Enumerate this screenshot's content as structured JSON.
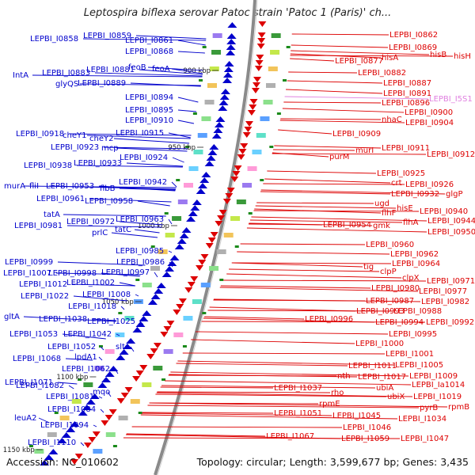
{
  "header": {
    "title": "Leptospira biflexa serovar Patoc strain 'Patoc 1 (Paris)' ch..."
  },
  "footer": {
    "accession": "Accession: NC_010602",
    "stats": "Topology: circular; Length: 3,599,677 bp; Genes: 3,435"
  },
  "colors": {
    "left_strand": "#0000cc",
    "right_strand": "#dd0000",
    "rna": "#e080e0",
    "backbone": "#8a8a8a",
    "tick": "#1a8a1a"
  },
  "scale_labels": [
    {
      "text": "900 kbp"
    },
    {
      "text": "950 kbp"
    },
    {
      "text": "1000 kbp"
    },
    {
      "text": "1050 kbp"
    },
    {
      "text": "1100 kbp"
    },
    {
      "text": "1150 kbp"
    }
  ],
  "left_labels": [
    {
      "text": "LEPBI_I0858"
    },
    {
      "text": "LEPBI_I0859"
    },
    {
      "text": "LEPBI_I0861"
    },
    {
      "text": "LEPBI_I0868"
    },
    {
      "text": "feoB"
    },
    {
      "text": "feoA"
    },
    {
      "text": "IntA"
    },
    {
      "text": "LEPBI_I0883"
    },
    {
      "text": "LEPBI_I0881"
    },
    {
      "text": "glyQS"
    },
    {
      "text": "LEPBI_I0889"
    },
    {
      "text": "LEPBI_I0894"
    },
    {
      "text": "LEPBI_I0895"
    },
    {
      "text": "LEPBI_I0910"
    },
    {
      "text": "LEPBI_I0915"
    },
    {
      "text": "LEPBI_I0918"
    },
    {
      "text": "cheY1"
    },
    {
      "text": "cheY2"
    },
    {
      "text": "LEPBI_I0923"
    },
    {
      "text": "mcp"
    },
    {
      "text": "LEPBI_I0924"
    },
    {
      "text": "LEPBI_I0938"
    },
    {
      "text": "LEPBI_I0933"
    },
    {
      "text": "LEPBI_I0942"
    },
    {
      "text": "murA"
    },
    {
      "text": "fliI"
    },
    {
      "text": "LEPBI_I0953"
    },
    {
      "text": "flbB"
    },
    {
      "text": "LEPBI_I0961"
    },
    {
      "text": "LEPBI_I0958"
    },
    {
      "text": "tatA"
    },
    {
      "text": "LEPBI_I0972"
    },
    {
      "text": "LEPBI_I0963"
    },
    {
      "text": "LEPBI_I0981"
    },
    {
      "text": "tatC"
    },
    {
      "text": "prlC"
    },
    {
      "text": "LEPBI_I0985"
    },
    {
      "text": "LEPBI_I0999"
    },
    {
      "text": "LEPBI_I0986"
    },
    {
      "text": "LEPBI_I1007"
    },
    {
      "text": "LEPBI_I0998"
    },
    {
      "text": "LEPBI_I0997"
    },
    {
      "text": "LEPBI_I1012"
    },
    {
      "text": "LEPBI_I1002"
    },
    {
      "text": "LEPBI_I1022"
    },
    {
      "text": "LEPBI_I1008"
    },
    {
      "text": "LEPBI_I1018"
    },
    {
      "text": "gltA"
    },
    {
      "text": "LEPBI_I1038"
    },
    {
      "text": "LEPBI_I1025"
    },
    {
      "text": "LEPBI_I1053"
    },
    {
      "text": "LEPBI_I1042"
    },
    {
      "text": "LEPBI_I1052"
    },
    {
      "text": "slt"
    },
    {
      "text": "LEPBI_I1068"
    },
    {
      "text": "lpdA1"
    },
    {
      "text": "LEPBI_I1062"
    },
    {
      "text": "LEPBI_I1071"
    },
    {
      "text": "LEPBI_I1082"
    },
    {
      "text": "mqo"
    },
    {
      "text": "LEPBI_I1081"
    },
    {
      "text": "LEPBI_I1084"
    },
    {
      "text": "leuA2"
    },
    {
      "text": "LEPBI_I1094"
    },
    {
      "text": "LEPBI_I1110"
    }
  ],
  "right_labels": [
    {
      "text": "LEPBI_I0862"
    },
    {
      "text": "LEPBI_I0869"
    },
    {
      "text": "hisB"
    },
    {
      "text": "hisH"
    },
    {
      "text": "LEPBI_I0877"
    },
    {
      "text": "hisA"
    },
    {
      "text": "LEPBI_I0882"
    },
    {
      "text": "LEPBI_I0887"
    },
    {
      "text": "LEPBI_I0891"
    },
    {
      "text": "LEPBI_I0896"
    },
    {
      "text": "LEPBI_I5S1",
      "rna": true
    },
    {
      "text": "LEPBI_I0900"
    },
    {
      "text": "nhaC"
    },
    {
      "text": "LEPBI_I0904"
    },
    {
      "text": "LEPBI_I0909"
    },
    {
      "text": "murI"
    },
    {
      "text": "LEPBI_I0911"
    },
    {
      "text": "purM"
    },
    {
      "text": "LEPBI_I0912"
    },
    {
      "text": "LEPBI_I0925"
    },
    {
      "text": "crt"
    },
    {
      "text": "LEPBI_I0926"
    },
    {
      "text": "LEPBI_I0932"
    },
    {
      "text": "glgP"
    },
    {
      "text": "ugd"
    },
    {
      "text": "hisE"
    },
    {
      "text": "flhF"
    },
    {
      "text": "LEPBI_I0940"
    },
    {
      "text": "flhA"
    },
    {
      "text": "LEPBI_I0944"
    },
    {
      "text": "LEPBI_I0954"
    },
    {
      "text": "gmk"
    },
    {
      "text": "LEPBI_I0950"
    },
    {
      "text": "LEPBI_I0960"
    },
    {
      "text": "LEPBI_I0962"
    },
    {
      "text": "tig"
    },
    {
      "text": "LEPBI_I0964"
    },
    {
      "text": "clpP"
    },
    {
      "text": "clpX"
    },
    {
      "text": "LEPBI_I0971"
    },
    {
      "text": "LEPBI_I0980"
    },
    {
      "text": "LEPBI_I0977"
    },
    {
      "text": "LEPBI_I0987"
    },
    {
      "text": "LEPBI_I0982"
    },
    {
      "text": "LEPBI_I0993"
    },
    {
      "text": "LEPBI_I0988"
    },
    {
      "text": "LEPBI_I0996"
    },
    {
      "text": "LEPBI_I0994"
    },
    {
      "text": "LEPBI_I0992"
    },
    {
      "text": "LEPBI_I0995"
    },
    {
      "text": "LEPBI_I1000"
    },
    {
      "text": "LEPBI_I1001"
    },
    {
      "text": "LEPBI_I1011"
    },
    {
      "text": "LEPBI_I1005"
    },
    {
      "text": "nth"
    },
    {
      "text": "LEPBI_I1017"
    },
    {
      "text": "LEPBI_I1009"
    },
    {
      "text": "LEPBI_I1037"
    },
    {
      "text": "ubiA"
    },
    {
      "text": "LEPBI_Ia1014"
    },
    {
      "text": "rho"
    },
    {
      "text": "ubiX"
    },
    {
      "text": "LEPBI_I1019"
    },
    {
      "text": "rpmE"
    },
    {
      "text": "pyrB"
    },
    {
      "text": "rpmB"
    },
    {
      "text": "LEPBI_I1051"
    },
    {
      "text": "LEPBI_I1045"
    },
    {
      "text": "LEPBI_I1034"
    },
    {
      "text": "LEPBI_I1046"
    },
    {
      "text": "LEPBI_I1067"
    },
    {
      "text": "LEPBI_I1059"
    },
    {
      "text": "LEPBI_I1047"
    }
  ]
}
